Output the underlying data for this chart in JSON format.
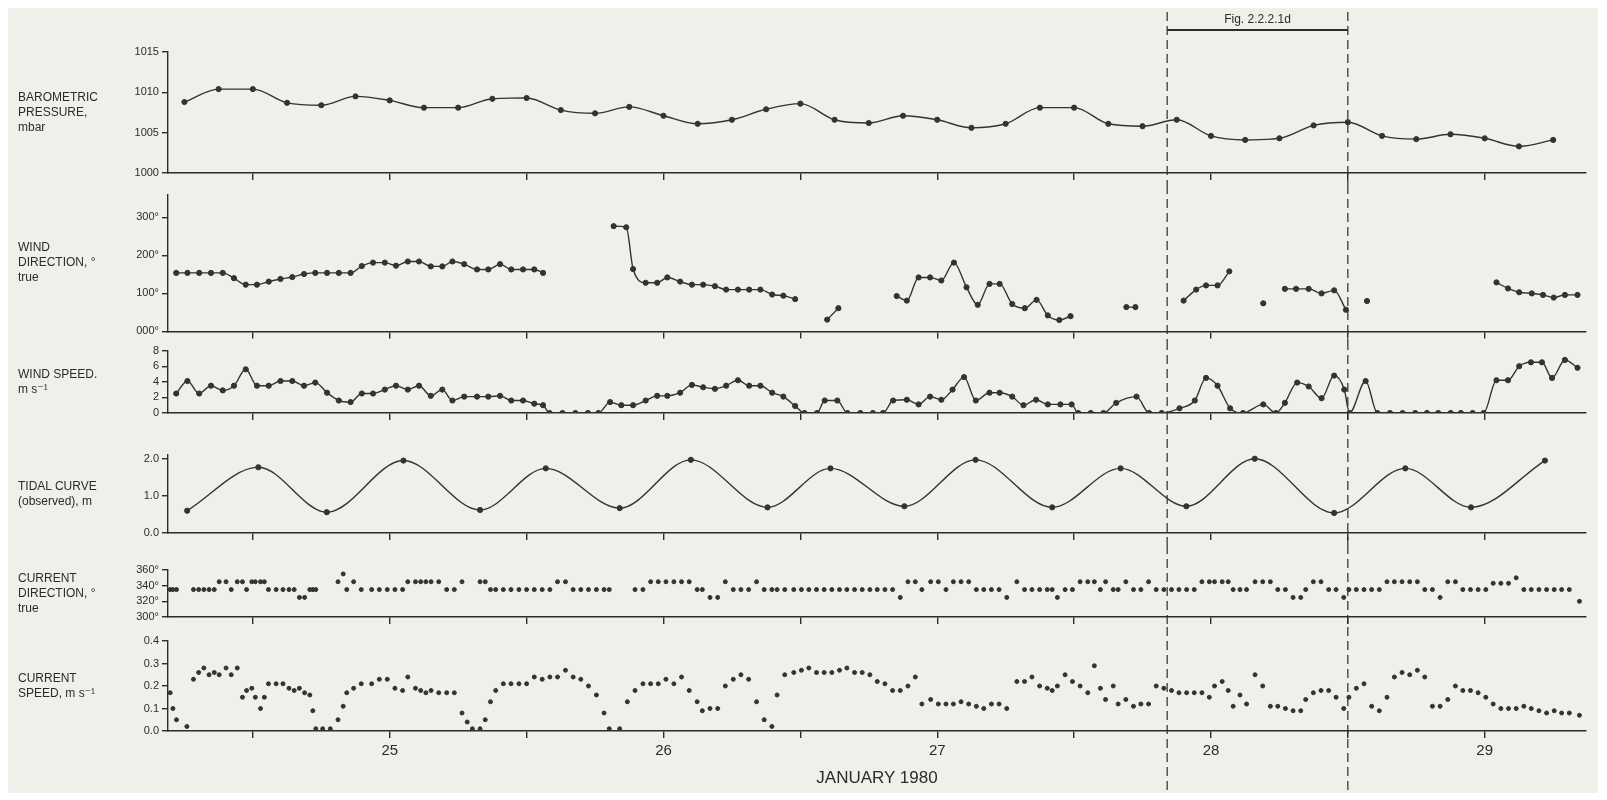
{
  "chart_data": [
    {
      "type": "line",
      "ylabel": "BAROMETRIC PRESSURE, mbar",
      "color": "#333333",
      "marker": "circle",
      "tick_labels": "y",
      "xlim": [
        24.69,
        29.87
      ],
      "xticks": [
        {
          "value": 25,
          "label": null
        },
        {
          "value": 25.5,
          "label": null
        },
        {
          "value": 26,
          "label": null
        },
        {
          "value": 26.5,
          "label": null
        },
        {
          "value": 27,
          "label": null
        },
        {
          "value": 27.5,
          "label": null
        },
        {
          "value": 28,
          "label": null
        },
        {
          "value": 28.5,
          "label": null
        },
        {
          "value": 29,
          "label": null
        },
        {
          "value": 29.5,
          "label": null
        }
      ],
      "ylim": [
        1000,
        1015
      ],
      "yticks": [
        1000,
        1005,
        1010,
        1015
      ],
      "ref_lines": [
        {
          "axis": "x",
          "value": 28.34,
          "line_style": "dashed"
        },
        {
          "axis": "x",
          "value": 29.0,
          "line_style": "dashed"
        }
      ],
      "annotations": [
        "Fig. 2.2.2.1d"
      ],
      "x": [
        24.75,
        24.875,
        25,
        25.125,
        25.25,
        25.375,
        25.5,
        25.625,
        25.75,
        25.875,
        26,
        26.125,
        26.25,
        26.375,
        26.5,
        26.625,
        26.75,
        26.875,
        27,
        27.125,
        27.25,
        27.375,
        27.5,
        27.625,
        27.75,
        27.875,
        28,
        28.125,
        28.25,
        28.375,
        28.5,
        28.625,
        28.75,
        28.875,
        29,
        29.125,
        29.25,
        29.375,
        29.5,
        29.625,
        29.75
      ],
      "values": [
        1008.8,
        1010.4,
        1010.4,
        1008.7,
        1008.4,
        1009.5,
        1009.0,
        1008.1,
        1008.1,
        1009.2,
        1009.3,
        1007.8,
        1007.4,
        1008.2,
        1007.1,
        1006.1,
        1006.6,
        1007.9,
        1008.6,
        1006.6,
        1006.2,
        1007.1,
        1006.6,
        1005.6,
        1006.1,
        1008.1,
        1008.1,
        1006.1,
        1005.8,
        1006.6,
        1004.6,
        1004.1,
        1004.3,
        1005.9,
        1006.3,
        1004.6,
        1004.2,
        1004.8,
        1004.3,
        1003.3,
        1004.1
      ]
    },
    {
      "type": "line",
      "ylabel": "WIND DIRECTION, ° true",
      "color": "#333333",
      "marker": "circle",
      "tick_labels": "y",
      "xlim": [
        24.69,
        29.87
      ],
      "xticks": [
        {
          "value": 25,
          "label": null
        },
        {
          "value": 25.5,
          "label": null
        },
        {
          "value": 26,
          "label": null
        },
        {
          "value": 26.5,
          "label": null
        },
        {
          "value": 27,
          "label": null
        },
        {
          "value": 27.5,
          "label": null
        },
        {
          "value": 28,
          "label": null
        },
        {
          "value": 28.5,
          "label": null
        },
        {
          "value": 29,
          "label": null
        },
        {
          "value": 29.5,
          "label": null
        }
      ],
      "ylim": [
        0,
        360
      ],
      "yticks": [
        {
          "value": 0,
          "label": "000°"
        },
        {
          "value": 100,
          "label": "100°"
        },
        {
          "value": 200,
          "label": "200°"
        },
        {
          "value": 300,
          "label": "300°"
        }
      ],
      "ref_lines": [
        {
          "axis": "x",
          "value": 28.34,
          "line_style": "dashed"
        },
        {
          "axis": "x",
          "value": 29.0,
          "line_style": "dashed"
        }
      ],
      "x": [
        24.72,
        24.761,
        24.804,
        24.847,
        24.89,
        24.931,
        24.974,
        25.015,
        25.058,
        25.101,
        25.144,
        25.187,
        25.228,
        25.271,
        25.314,
        25.357,
        25.398,
        25.439,
        25.482,
        25.523,
        25.566,
        25.607,
        25.65,
        25.692,
        25.729,
        25.772,
        25.819,
        25.86,
        25.903,
        25.944,
        25.987,
        26.028,
        26.06,
        26.2,
        26.318,
        26.364,
        26.389,
        26.435,
        26.477,
        26.514,
        26.561,
        26.604,
        26.645,
        26.688,
        26.729,
        26.772,
        26.813,
        26.854,
        26.897,
        26.938,
        26.981,
        27.05,
        27.098,
        27.139,
        27.25,
        27.352,
        27.389,
        27.432,
        27.474,
        27.515,
        27.561,
        27.607,
        27.648,
        27.691,
        27.728,
        27.774,
        27.82,
        27.863,
        27.904,
        27.946,
        27.987,
        28.1,
        28.191,
        28.224,
        28.3,
        28.4,
        28.446,
        28.482,
        28.524,
        28.567,
        28.63,
        28.691,
        28.73,
        28.77,
        28.811,
        28.857,
        28.904,
        28.95,
        28.993,
        29.03,
        29.07,
        29.3,
        29.543,
        29.585,
        29.626,
        29.672,
        29.713,
        29.752,
        29.793,
        29.839
      ],
      "values": [
        154,
        154,
        154,
        154,
        154,
        140,
        123,
        123,
        131,
        138,
        143,
        151,
        154,
        154,
        154,
        154,
        172,
        181,
        181,
        173,
        184,
        184,
        171,
        171,
        184,
        177,
        163,
        163,
        177,
        163,
        163,
        163,
        154,
        null,
        277,
        274,
        164,
        128,
        128,
        142,
        131,
        123,
        123,
        119,
        110,
        110,
        110,
        110,
        97,
        94,
        85,
        null,
        31,
        61,
        null,
        93,
        81,
        142,
        142,
        134,
        181,
        116,
        70,
        125,
        125,
        72,
        61,
        83,
        42,
        30,
        40,
        null,
        64,
        64,
        null,
        81,
        110,
        121,
        121,
        158,
        null,
        74,
        null,
        112,
        112,
        112,
        100,
        108,
        57,
        null,
        80,
        null,
        129,
        113,
        103,
        100,
        96,
        89,
        96,
        96
      ]
    },
    {
      "type": "line",
      "ylabel": "WIND SPEED. m s⁻¹",
      "color": "#333333",
      "marker": "circle",
      "tick_labels": "y",
      "xlim": [
        24.69,
        29.87
      ],
      "xticks": [
        {
          "value": 25,
          "label": null
        },
        {
          "value": 25.5,
          "label": null
        },
        {
          "value": 26,
          "label": null
        },
        {
          "value": 26.5,
          "label": null
        },
        {
          "value": 27,
          "label": null
        },
        {
          "value": 27.5,
          "label": null
        },
        {
          "value": 28,
          "label": null
        },
        {
          "value": 28.5,
          "label": null
        },
        {
          "value": 29,
          "label": null
        },
        {
          "value": 29.5,
          "label": null
        }
      ],
      "ylim": [
        0,
        8
      ],
      "yticks": [
        0,
        2,
        4,
        6,
        8
      ],
      "ref_lines": [
        {
          "axis": "x",
          "value": 28.34,
          "line_style": "dashed"
        },
        {
          "axis": "x",
          "value": 29.0,
          "line_style": "dashed"
        }
      ],
      "x": [
        24.72,
        24.761,
        24.804,
        24.847,
        24.89,
        24.931,
        24.974,
        25.015,
        25.058,
        25.101,
        25.144,
        25.187,
        25.228,
        25.271,
        25.314,
        25.357,
        25.398,
        25.439,
        25.482,
        25.523,
        25.566,
        25.607,
        25.65,
        25.692,
        25.729,
        25.772,
        25.819,
        25.86,
        25.903,
        25.944,
        25.987,
        26.028,
        26.06,
        26.084,
        26.131,
        26.178,
        26.224,
        26.262,
        26.305,
        26.346,
        26.389,
        26.435,
        26.477,
        26.514,
        26.561,
        26.604,
        26.645,
        26.688,
        26.729,
        26.772,
        26.813,
        26.854,
        26.897,
        26.938,
        26.981,
        27.015,
        27.061,
        27.089,
        27.135,
        27.172,
        27.219,
        27.265,
        27.302,
        27.339,
        27.389,
        27.432,
        27.474,
        27.515,
        27.556,
        27.598,
        27.641,
        27.691,
        27.728,
        27.774,
        27.815,
        27.861,
        27.904,
        27.95,
        27.991,
        28.015,
        28.061,
        28.107,
        28.154,
        28.228,
        28.274,
        28.32,
        28.385,
        28.441,
        28.482,
        28.524,
        28.57,
        28.617,
        28.691,
        28.737,
        28.77,
        28.815,
        28.857,
        28.904,
        28.95,
        28.987,
        29.006,
        29.065,
        29.108,
        29.154,
        29.2,
        29.246,
        29.289,
        29.33,
        29.376,
        29.413,
        29.456,
        29.496,
        29.543,
        29.585,
        29.626,
        29.669,
        29.709,
        29.746,
        29.793,
        29.839
      ],
      "values": [
        2.5,
        4.1,
        2.5,
        3.5,
        2.9,
        3.5,
        5.6,
        3.5,
        3.5,
        4.1,
        4.1,
        3.5,
        3.9,
        2.6,
        1.6,
        1.4,
        2.5,
        2.5,
        3.0,
        3.5,
        3.0,
        3.5,
        2.2,
        3.0,
        1.6,
        2.1,
        2.1,
        2.1,
        2.2,
        1.6,
        1.6,
        1.2,
        1.0,
        0,
        0,
        0,
        0,
        0,
        1.4,
        1.0,
        1.0,
        1.6,
        2.2,
        2.2,
        2.6,
        3.6,
        3.3,
        3.1,
        3.5,
        4.2,
        3.5,
        3.5,
        2.6,
        2.1,
        0.9,
        0,
        0,
        1.6,
        1.6,
        0,
        0,
        0,
        0,
        1.6,
        1.7,
        1.1,
        2.1,
        1.7,
        3.0,
        4.6,
        1.6,
        2.6,
        2.6,
        2.1,
        1.0,
        1.7,
        1.1,
        1.1,
        1.1,
        0,
        0,
        0,
        1.3,
        2.1,
        0,
        0,
        0.6,
        1.6,
        4.5,
        3.5,
        0.6,
        0,
        1.1,
        0,
        1.3,
        3.9,
        3.4,
        1.9,
        4.8,
        3.0,
        0,
        4.1,
        0,
        0,
        0,
        0,
        0,
        0,
        0,
        0,
        0,
        0,
        4.2,
        4.2,
        6.0,
        6.5,
        6.5,
        4.5,
        6.8,
        5.8
      ]
    },
    {
      "type": "line",
      "ylabel": "TIDAL CURVE (observed), m",
      "color": "#333333",
      "marker": "circle",
      "tick_labels": "y",
      "xlim": [
        24.69,
        29.87
      ],
      "xticks": [
        {
          "value": 25,
          "label": null
        },
        {
          "value": 25.5,
          "label": null
        },
        {
          "value": 26,
          "label": null
        },
        {
          "value": 26.5,
          "label": null
        },
        {
          "value": 27,
          "label": null
        },
        {
          "value": 27.5,
          "label": null
        },
        {
          "value": 28,
          "label": null
        },
        {
          "value": 28.5,
          "label": null
        },
        {
          "value": 29,
          "label": null
        },
        {
          "value": 29.5,
          "label": null
        }
      ],
      "ylim": [
        0,
        2.1
      ],
      "yticks": [
        {
          "value": 0,
          "label": "0.0"
        },
        {
          "value": 1,
          "label": "1.0"
        },
        {
          "value": 2,
          "label": "2.0"
        }
      ],
      "ref_lines": [
        {
          "axis": "x",
          "value": 28.34,
          "line_style": "dashed"
        },
        {
          "axis": "x",
          "value": 29.0,
          "line_style": "dashed"
        }
      ],
      "x": [
        24.76,
        25.02,
        25.27,
        25.55,
        25.83,
        26.07,
        26.34,
        26.6,
        26.88,
        27.11,
        27.38,
        27.64,
        27.92,
        28.17,
        28.41,
        28.66,
        28.95,
        29.21,
        29.45,
        29.72
      ],
      "values": [
        0.6,
        1.77,
        0.56,
        1.95,
        0.62,
        1.74,
        0.67,
        1.97,
        0.69,
        1.74,
        0.72,
        1.97,
        0.69,
        1.74,
        0.72,
        2.0,
        0.54,
        1.74,
        0.69,
        1.95
      ]
    },
    {
      "type": "scatter",
      "ylabel": "CURRENT DIRECTION, ° true",
      "color": "#333333",
      "marker": "circle",
      "tick_labels": "y",
      "xlim": [
        24.69,
        29.87
      ],
      "xticks": [
        {
          "value": 25,
          "label": null
        },
        {
          "value": 25.5,
          "label": null
        },
        {
          "value": 26,
          "label": null
        },
        {
          "value": 26.5,
          "label": null
        },
        {
          "value": 27,
          "label": null
        },
        {
          "value": 27.5,
          "label": null
        },
        {
          "value": 28,
          "label": null
        },
        {
          "value": 28.5,
          "label": null
        },
        {
          "value": 29,
          "label": null
        },
        {
          "value": 29.5,
          "label": null
        }
      ],
      "ylim": [
        300,
        360
      ],
      "yticks": [
        {
          "value": 300,
          "label": "300°"
        },
        {
          "value": 320,
          "label": "320°"
        },
        {
          "value": 340,
          "label": "340°"
        },
        {
          "value": 360,
          "label": "360°"
        }
      ],
      "ref_lines": [
        {
          "axis": "x",
          "value": 28.34,
          "line_style": "dashed"
        },
        {
          "axis": "x",
          "value": 29.0,
          "line_style": "dashed"
        }
      ],
      "x": [
        24.698,
        24.708,
        24.721,
        24.759,
        24.783,
        24.802,
        24.821,
        24.84,
        24.859,
        24.877,
        24.902,
        24.921,
        24.943,
        24.962,
        24.977,
        24.996,
        25.009,
        25.028,
        25.042,
        25.057,
        25.085,
        25.11,
        25.132,
        25.151,
        25.17,
        25.189,
        25.208,
        25.219,
        25.23,
        25.255,
        25.283,
        25.311,
        25.33,
        25.343,
        25.368,
        25.396,
        25.434,
        25.462,
        25.491,
        25.519,
        25.547,
        25.566,
        25.594,
        25.613,
        25.632,
        25.651,
        25.679,
        25.708,
        25.736,
        25.764,
        25.783,
        25.802,
        25.83,
        25.849,
        25.868,
        25.887,
        25.915,
        25.943,
        25.972,
        26.0,
        26.028,
        26.057,
        26.085,
        26.113,
        26.142,
        26.17,
        26.198,
        26.226,
        26.255,
        26.283,
        26.302,
        26.34,
        26.368,
        26.396,
        26.425,
        26.453,
        26.481,
        26.509,
        26.538,
        26.566,
        26.594,
        26.623,
        26.642,
        26.67,
        26.698,
        26.726,
        26.755,
        26.783,
        26.811,
        26.84,
        26.868,
        26.896,
        26.915,
        26.943,
        26.976,
        27.004,
        27.031,
        27.059,
        27.087,
        27.115,
        27.143,
        27.17,
        27.198,
        27.226,
        27.254,
        27.281,
        27.309,
        27.337,
        27.365,
        27.393,
        27.42,
        27.444,
        27.476,
        27.504,
        27.532,
        27.559,
        27.587,
        27.615,
        27.643,
        27.67,
        27.698,
        27.726,
        27.754,
        27.791,
        27.819,
        27.846,
        27.874,
        27.902,
        27.92,
        27.939,
        27.967,
        27.994,
        28.022,
        28.05,
        28.074,
        28.096,
        28.115,
        28.143,
        28.161,
        28.189,
        28.217,
        28.244,
        28.272,
        28.3,
        28.328,
        28.356,
        28.383,
        28.411,
        28.439,
        28.467,
        28.494,
        28.513,
        28.541,
        28.563,
        28.581,
        28.606,
        28.63,
        28.661,
        28.689,
        28.717,
        28.744,
        28.772,
        28.8,
        28.828,
        28.846,
        28.874,
        28.902,
        28.93,
        28.957,
        28.985,
        29.004,
        29.031,
        29.059,
        29.087,
        29.115,
        29.143,
        29.17,
        29.198,
        29.226,
        29.254,
        29.281,
        29.309,
        29.337,
        29.365,
        29.393,
        29.42,
        29.448,
        29.476,
        29.504,
        29.531,
        29.559,
        29.587,
        29.615,
        29.643,
        29.67,
        29.698,
        29.726,
        29.754,
        29.781,
        29.809,
        29.846
      ],
      "values": [
        335,
        335,
        335,
        null,
        335,
        335,
        335,
        335,
        335,
        345,
        345,
        335,
        345,
        345,
        335,
        345,
        345,
        345,
        345,
        335,
        335,
        335,
        335,
        335,
        325,
        325,
        335,
        335,
        335,
        null,
        null,
        345,
        355,
        335,
        345,
        335,
        335,
        335,
        335,
        335,
        335,
        345,
        345,
        345,
        345,
        345,
        345,
        335,
        335,
        345,
        null,
        null,
        345,
        345,
        335,
        335,
        335,
        335,
        335,
        335,
        335,
        335,
        335,
        345,
        345,
        335,
        335,
        335,
        335,
        335,
        335,
        null,
        null,
        335,
        335,
        345,
        345,
        345,
        345,
        345,
        345,
        335,
        335,
        325,
        325,
        345,
        335,
        335,
        335,
        345,
        335,
        335,
        335,
        335,
        335,
        335,
        335,
        335,
        335,
        335,
        335,
        335,
        335,
        335,
        335,
        335,
        335,
        335,
        325,
        345,
        345,
        335,
        345,
        345,
        335,
        345,
        345,
        345,
        335,
        335,
        335,
        335,
        325,
        345,
        335,
        335,
        335,
        335,
        335,
        325,
        335,
        335,
        345,
        345,
        345,
        335,
        345,
        335,
        335,
        345,
        335,
        335,
        345,
        335,
        335,
        335,
        335,
        335,
        335,
        345,
        345,
        345,
        345,
        345,
        335,
        335,
        335,
        345,
        345,
        345,
        335,
        335,
        325,
        325,
        335,
        345,
        345,
        335,
        335,
        325,
        335,
        335,
        335,
        335,
        335,
        345,
        345,
        345,
        345,
        345,
        335,
        335,
        325,
        345,
        345,
        335,
        335,
        335,
        335,
        343,
        343,
        343,
        350,
        335,
        335,
        335,
        335,
        335,
        335,
        335,
        320
      ]
    },
    {
      "type": "scatter",
      "ylabel": "CURRENT SPEED, m s⁻¹",
      "xlabel": "JANUARY 1980",
      "color": "#333333",
      "marker": "circle",
      "xlim": [
        24.69,
        29.87
      ],
      "xticks": [
        {
          "value": 25,
          "label": null
        },
        {
          "value": 25.5,
          "label": "25"
        },
        {
          "value": 26,
          "label": null
        },
        {
          "value": 26.5,
          "label": "26"
        },
        {
          "value": 27,
          "label": null
        },
        {
          "value": 27.5,
          "label": "27"
        },
        {
          "value": 28,
          "label": null
        },
        {
          "value": 28.5,
          "label": "28"
        },
        {
          "value": 29,
          "label": null
        },
        {
          "value": 29.5,
          "label": "29"
        }
      ],
      "ylim": [
        0,
        0.4
      ],
      "yticks": [
        {
          "value": 0,
          "label": "0.0"
        },
        {
          "value": 0.1,
          "label": "0.1"
        },
        {
          "value": 0.2,
          "label": "0.2"
        },
        {
          "value": 0.3,
          "label": "0.3"
        },
        {
          "value": 0.4,
          "label": "0.4"
        }
      ],
      "ref_lines": [
        {
          "axis": "x",
          "value": 28.34,
          "line_style": "dashed"
        },
        {
          "axis": "x",
          "value": 29.0,
          "line_style": "dashed"
        }
      ],
      "x": [
        24.698,
        24.708,
        24.721,
        24.759,
        24.783,
        24.802,
        24.821,
        24.84,
        24.859,
        24.877,
        24.902,
        24.921,
        24.943,
        24.962,
        24.977,
        24.996,
        25.009,
        25.028,
        25.042,
        25.057,
        25.085,
        25.11,
        25.132,
        25.151,
        25.17,
        25.189,
        25.208,
        25.219,
        25.23,
        25.255,
        25.283,
        25.311,
        25.33,
        25.343,
        25.368,
        25.396,
        25.434,
        25.462,
        25.491,
        25.519,
        25.547,
        25.566,
        25.594,
        25.613,
        25.632,
        25.651,
        25.679,
        25.708,
        25.736,
        25.764,
        25.783,
        25.802,
        25.83,
        25.849,
        25.868,
        25.887,
        25.915,
        25.943,
        25.972,
        26.0,
        26.028,
        26.057,
        26.085,
        26.113,
        26.142,
        26.17,
        26.198,
        26.226,
        26.255,
        26.283,
        26.302,
        26.34,
        26.368,
        26.396,
        26.425,
        26.453,
        26.481,
        26.509,
        26.538,
        26.566,
        26.594,
        26.623,
        26.642,
        26.67,
        26.698,
        26.726,
        26.755,
        26.783,
        26.811,
        26.84,
        26.868,
        26.896,
        26.915,
        26.943,
        26.976,
        27.004,
        27.031,
        27.059,
        27.087,
        27.115,
        27.143,
        27.17,
        27.198,
        27.226,
        27.254,
        27.281,
        27.309,
        27.337,
        27.365,
        27.393,
        27.42,
        27.444,
        27.476,
        27.504,
        27.532,
        27.559,
        27.587,
        27.615,
        27.643,
        27.67,
        27.698,
        27.726,
        27.754,
        27.791,
        27.819,
        27.846,
        27.874,
        27.902,
        27.92,
        27.939,
        27.967,
        27.994,
        28.022,
        28.05,
        28.074,
        28.096,
        28.115,
        28.143,
        28.161,
        28.189,
        28.217,
        28.244,
        28.272,
        28.3,
        28.328,
        28.356,
        28.383,
        28.411,
        28.439,
        28.467,
        28.494,
        28.513,
        28.541,
        28.563,
        28.581,
        28.606,
        28.63,
        28.661,
        28.689,
        28.717,
        28.744,
        28.772,
        28.8,
        28.828,
        28.846,
        28.874,
        28.902,
        28.93,
        28.957,
        28.985,
        29.004,
        29.031,
        29.059,
        29.087,
        29.115,
        29.143,
        29.17,
        29.198,
        29.226,
        29.254,
        29.281,
        29.309,
        29.337,
        29.365,
        29.393,
        29.42,
        29.448,
        29.476,
        29.504,
        29.531,
        29.559,
        29.587,
        29.615,
        29.643,
        29.67,
        29.698,
        29.726,
        29.754,
        29.781,
        29.809,
        29.846
      ],
      "values": [
        0.17,
        0.1,
        0.05,
        0.02,
        0.23,
        0.26,
        0.28,
        0.25,
        0.26,
        0.25,
        0.28,
        0.25,
        0.28,
        0.15,
        0.18,
        0.19,
        0.15,
        0.1,
        0.15,
        0.21,
        0.21,
        0.21,
        0.19,
        0.18,
        0.19,
        0.17,
        0.16,
        0.09,
        0.01,
        0.01,
        0.01,
        0.05,
        0.11,
        0.17,
        0.19,
        0.21,
        0.21,
        0.23,
        0.23,
        0.19,
        0.18,
        0.24,
        0.19,
        0.18,
        0.17,
        0.18,
        0.17,
        0.17,
        0.17,
        0.08,
        0.04,
        0.01,
        0.01,
        0.05,
        0.13,
        0.18,
        0.21,
        0.21,
        0.21,
        0.21,
        0.24,
        0.23,
        0.24,
        0.24,
        0.27,
        0.24,
        0.23,
        0.2,
        0.16,
        0.08,
        0.01,
        0.01,
        0.13,
        0.18,
        0.21,
        0.21,
        0.21,
        0.23,
        0.21,
        0.24,
        0.18,
        0.13,
        0.09,
        0.1,
        0.1,
        0.2,
        0.23,
        0.25,
        0.23,
        0.13,
        0.05,
        0.02,
        0.16,
        0.25,
        0.26,
        0.27,
        0.28,
        0.26,
        0.26,
        0.26,
        0.27,
        0.28,
        0.26,
        0.26,
        0.25,
        0.22,
        0.21,
        0.18,
        0.18,
        0.2,
        0.24,
        0.12,
        0.14,
        0.12,
        0.12,
        0.12,
        0.13,
        0.12,
        0.11,
        0.1,
        0.12,
        0.12,
        0.1,
        0.22,
        0.22,
        0.24,
        0.2,
        0.19,
        0.18,
        0.2,
        0.25,
        0.22,
        0.2,
        0.17,
        0.29,
        0.19,
        0.14,
        0.2,
        0.12,
        0.14,
        0.11,
        0.12,
        0.12,
        0.2,
        0.19,
        0.18,
        0.17,
        0.17,
        0.17,
        0.17,
        0.15,
        0.2,
        0.22,
        0.18,
        0.11,
        0.16,
        0.12,
        0.25,
        0.2,
        0.11,
        0.11,
        0.1,
        0.09,
        0.09,
        0.14,
        0.17,
        0.18,
        0.18,
        0.15,
        0.1,
        0.15,
        0.19,
        0.21,
        0.11,
        0.09,
        0.15,
        0.24,
        0.26,
        0.25,
        0.27,
        0.24,
        0.11,
        0.11,
        0.14,
        0.2,
        0.18,
        0.18,
        0.17,
        0.15,
        0.12,
        0.1,
        0.1,
        0.1,
        0.11,
        0.1,
        0.09,
        0.08,
        0.09,
        0.08,
        0.08,
        0.07
      ]
    }
  ]
}
